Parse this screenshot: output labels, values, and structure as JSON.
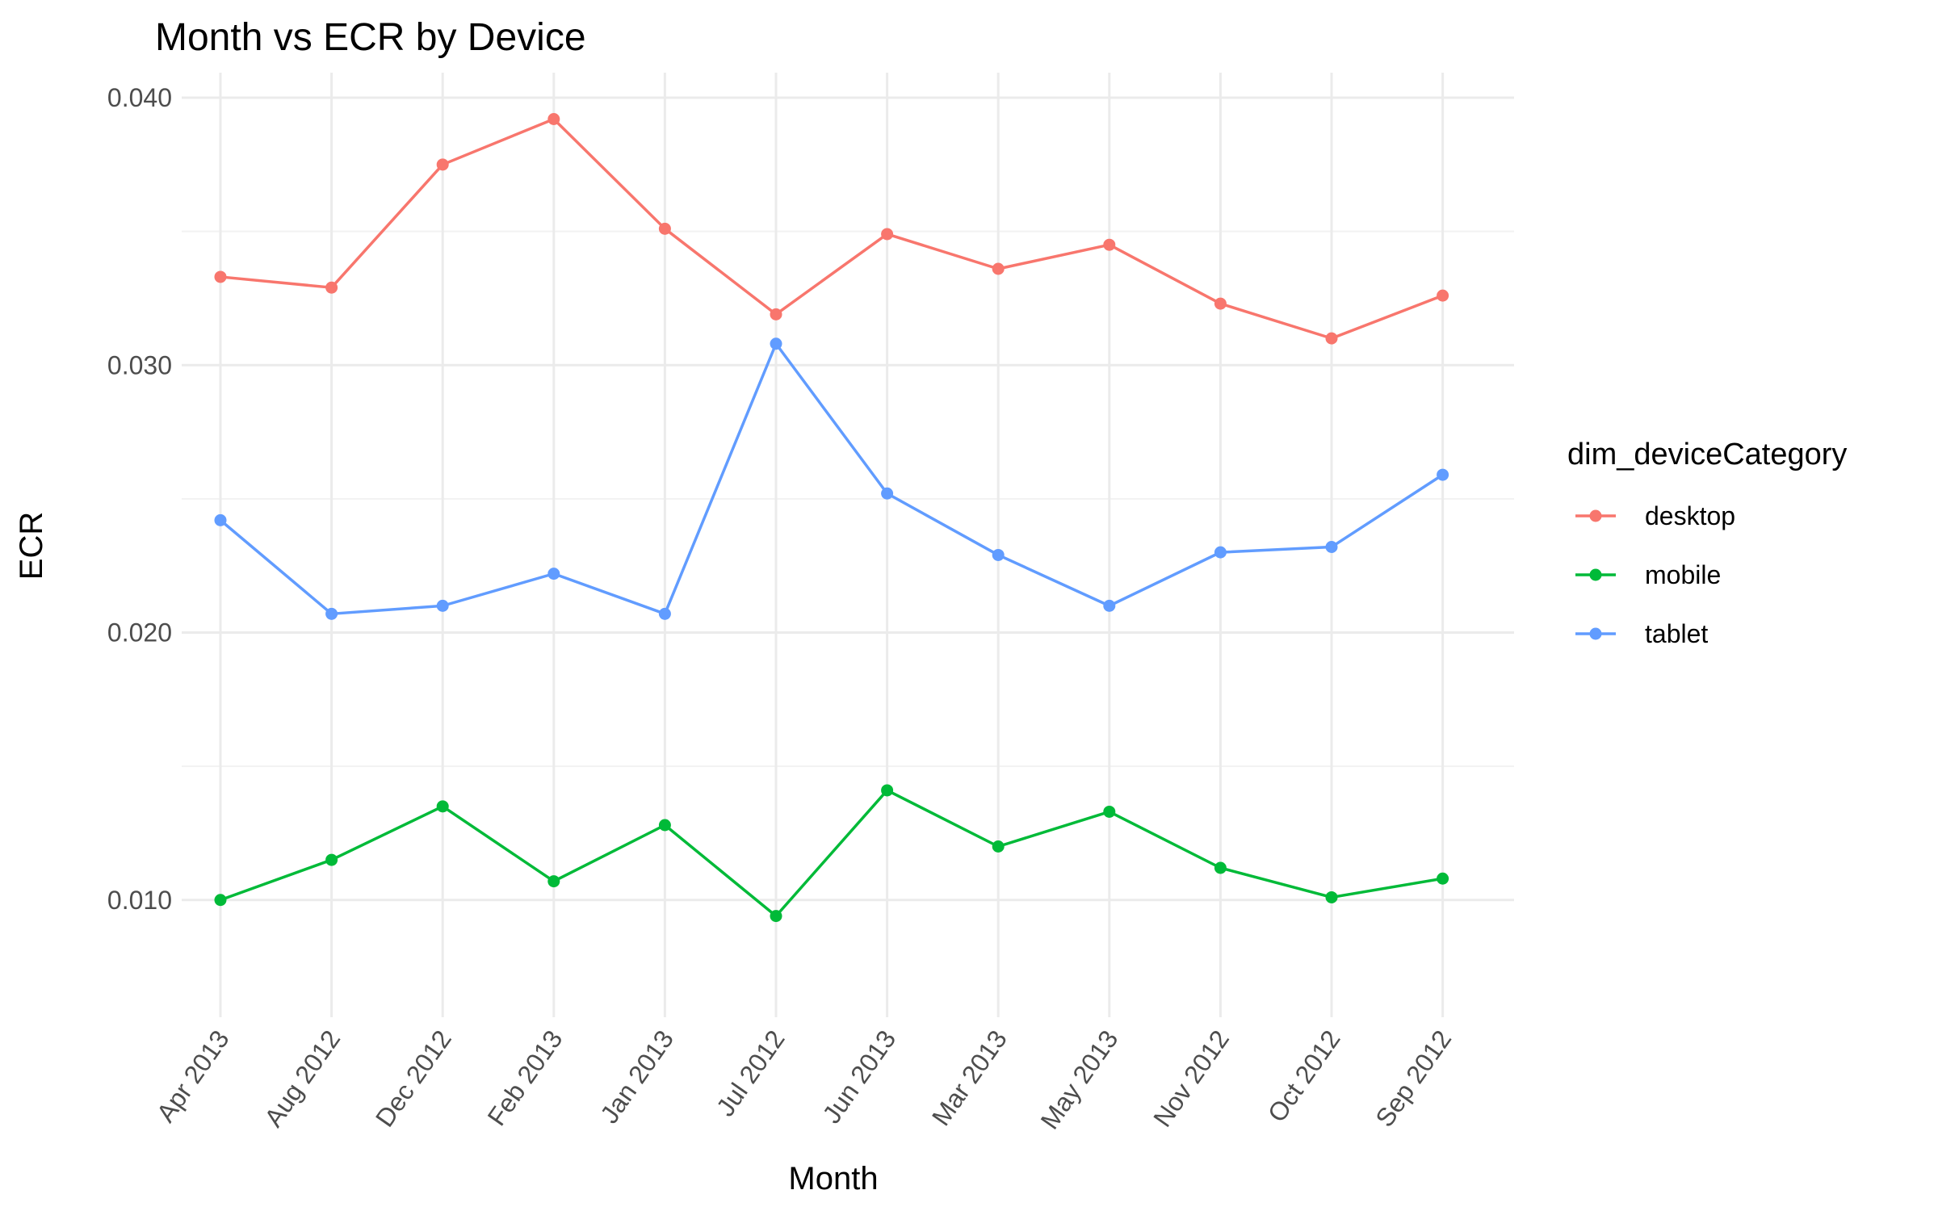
{
  "chart_data": {
    "type": "line",
    "title": "Month vs ECR by Device",
    "xlabel": "Month",
    "ylabel": "ECR",
    "categories": [
      "Apr 2013",
      "Aug 2012",
      "Dec 2012",
      "Feb 2013",
      "Jan 2013",
      "Jul 2012",
      "Jun 2013",
      "Mar 2013",
      "May 2013",
      "Nov 2012",
      "Oct 2012",
      "Sep 2012"
    ],
    "ylim": [
      0.008,
      0.04
    ],
    "yticks": [
      0.01,
      0.02,
      0.03,
      0.04
    ],
    "ytick_labels": [
      "0.010",
      "0.020",
      "0.030",
      "0.040"
    ],
    "grid": true,
    "legend": {
      "title": "dim_deviceCategory",
      "position": "right"
    },
    "series": [
      {
        "name": "desktop",
        "color": "#F8766D",
        "values": [
          0.0333,
          0.0329,
          0.0375,
          0.0392,
          0.0351,
          0.0319,
          0.0349,
          0.0336,
          0.0345,
          0.0323,
          0.031,
          0.0326
        ]
      },
      {
        "name": "mobile",
        "color": "#00BA38",
        "values": [
          0.01,
          0.0115,
          0.0135,
          0.0107,
          0.0128,
          0.0094,
          0.0141,
          0.012,
          0.0133,
          0.0112,
          0.0101,
          0.0108
        ]
      },
      {
        "name": "tablet",
        "color": "#619CFF",
        "values": [
          0.0242,
          0.0207,
          0.021,
          0.0222,
          0.0207,
          0.0308,
          0.0252,
          0.0229,
          0.021,
          0.023,
          0.0232,
          0.0259
        ]
      }
    ]
  }
}
